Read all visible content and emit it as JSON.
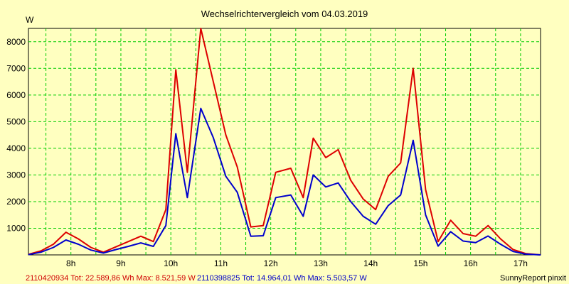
{
  "chart_data": {
    "type": "line",
    "title": "Wechselrichtervergleich vom 04.03.2019",
    "ylabel": "W",
    "xlabel": "",
    "x_tick_labels": [
      "8h",
      "9h",
      "10h",
      "11h",
      "12h",
      "13h",
      "14h",
      "15h",
      "16h",
      "17h"
    ],
    "x_tick_hours": [
      8,
      9,
      10,
      11,
      12,
      13,
      14,
      15,
      16,
      17
    ],
    "xlim": [
      7.15,
      17.4
    ],
    "ylim": [
      0,
      8500
    ],
    "y_ticks": [
      1000,
      2000,
      3000,
      4000,
      5000,
      6000,
      7000,
      8000
    ],
    "grid": true,
    "colors": {
      "background": "#ffffc0",
      "grid": "#00cc00",
      "series1": "#dd0000",
      "series2": "#0000cc"
    },
    "x": [
      7.15,
      7.4,
      7.65,
      7.9,
      8.15,
      8.4,
      8.65,
      8.9,
      9.15,
      9.4,
      9.65,
      9.9,
      10.1,
      10.33,
      10.6,
      10.85,
      11.1,
      11.33,
      11.6,
      11.85,
      12.1,
      12.4,
      12.65,
      12.85,
      13.1,
      13.35,
      13.6,
      13.85,
      14.1,
      14.35,
      14.6,
      14.85,
      15.1,
      15.35,
      15.6,
      15.85,
      16.1,
      16.35,
      16.6,
      16.85,
      17.1,
      17.4
    ],
    "series": [
      {
        "name": "2110420934",
        "values": [
          20,
          150,
          400,
          850,
          600,
          280,
          100,
          300,
          500,
          700,
          500,
          1700,
          6950,
          3100,
          8500,
          6500,
          4500,
          3300,
          1050,
          1100,
          3100,
          3250,
          2150,
          4380,
          3650,
          3950,
          2800,
          2100,
          1700,
          2950,
          3450,
          7000,
          2450,
          500,
          1300,
          800,
          700,
          1100,
          600,
          200,
          50,
          0
        ]
      },
      {
        "name": "2110398825",
        "values": [
          10,
          100,
          280,
          560,
          400,
          180,
          70,
          200,
          320,
          450,
          320,
          1100,
          4550,
          2150,
          5500,
          4400,
          2950,
          2350,
          700,
          720,
          2150,
          2250,
          1450,
          3000,
          2550,
          2700,
          2000,
          1450,
          1150,
          1850,
          2250,
          4300,
          1500,
          330,
          870,
          520,
          460,
          710,
          400,
          130,
          30,
          0
        ]
      }
    ],
    "footer": {
      "series1": "2110420934 Tot: 22.589,86 Wh Max: 8.521,59 W",
      "series2": "2110398825 Tot: 14.964,01 Wh Max: 5.503,57 W",
      "credit": "SunnyReport pinxit"
    }
  }
}
